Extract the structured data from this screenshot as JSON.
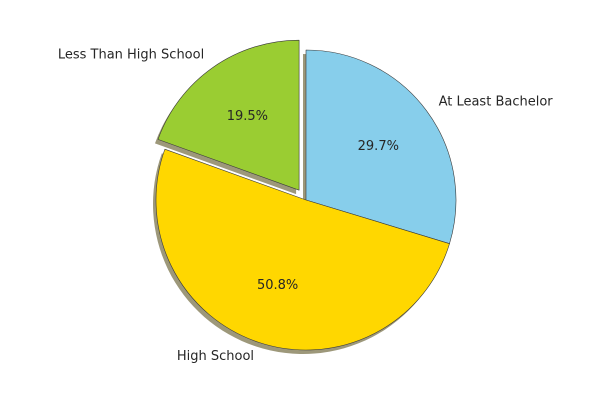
{
  "chart_data": {
    "type": "pie",
    "title": "",
    "start_angle_deg": 90,
    "direction": "clockwise",
    "shadow": true,
    "slices": [
      {
        "label": "At Least Bachelor",
        "value": 29.7,
        "pct_label": "29.7%",
        "color": "#87CEEB",
        "exploded": false
      },
      {
        "label": "High School",
        "value": 50.8,
        "pct_label": "50.8%",
        "color": "#FFD700",
        "exploded": false
      },
      {
        "label": "Less Than High School",
        "value": 19.5,
        "pct_label": "19.5%",
        "color": "#9ACD32",
        "exploded": true
      }
    ]
  }
}
